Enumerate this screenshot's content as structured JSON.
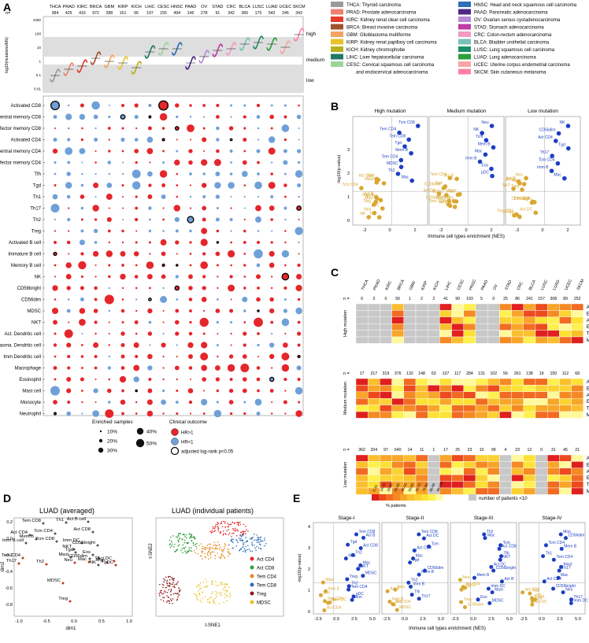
{
  "panel_labels": {
    "a": "A",
    "b": "B",
    "c": "C",
    "d": "D",
    "e": "E"
  },
  "cancers": [
    "THCA",
    "PRAD",
    "KIRC",
    "BRCA",
    "GBM",
    "KIRP",
    "KICH",
    "LIHC",
    "CESC",
    "HNSC",
    "PAAD",
    "OV",
    "STAD",
    "CRC",
    "BLCA",
    "LUSC",
    "LUAD",
    "UCEC",
    "SKCM"
  ],
  "colors": {
    "THCA": "#9a9a9a",
    "PRAD": "#f08070",
    "KIRC": "#e63b2e",
    "BRCA": "#a0522d",
    "GBM": "#f4a460",
    "KIRP": "#e8c32a",
    "KICH": "#b8b01e",
    "LIHC": "#1f7a63",
    "CESC": "#9bd49b",
    "HNSC": "#2d6eb5",
    "PAAD": "#4e2a84",
    "OV": "#b78ad6",
    "STAD": "#bf3aa5",
    "CRC": "#f39ac6",
    "BLCA": "#78c2ba",
    "LUSC": "#1d8f6a",
    "LUAD": "#2e9f3a",
    "UCEC": "#f8a5a5",
    "SKCM": "#ff7fa5",
    "red": "#e5262b",
    "blue": "#6fa0d8",
    "gold": "#d9a732",
    "navy": "#1c3fc2"
  },
  "panel_a": {
    "n_label": "n=",
    "n_values": [
      "384",
      "425",
      "416",
      "972",
      "288",
      "161",
      "66",
      "197",
      "155",
      "494",
      "146",
      "278",
      "91",
      "342",
      "366",
      "175",
      "542",
      "246",
      "343"
    ],
    "y_axis_label": "log10(mutations/Mb)",
    "y_ticks": [
      "1000",
      "100",
      "10",
      "1",
      "0.1",
      "0.01"
    ],
    "band_labels": [
      "high",
      "medium",
      "low"
    ],
    "cell_types": [
      "Activated CD8",
      "Central memory CD8",
      "Effector memory CD8",
      "Activated CD4",
      "Central memory CD4",
      "Effector memory CD4",
      "Tfh",
      "Tgd",
      "Th1",
      "Th17",
      "Th2",
      "Treg",
      "Activated B cell",
      "Immature B cell",
      "Memory B cell",
      "NK",
      "CD56bright",
      "CD56dim",
      "MDSC",
      "NKT",
      "Act. Dendritic cell",
      "plasma. Dendritic cell",
      "Imm Dendritic cell",
      "Macrophage",
      "Eosinophil",
      "Mast cell",
      "Monocyte",
      "Neutrophil"
    ],
    "enriched_title": "Enriched samples",
    "enriched_sizes": [
      "10%",
      "20%",
      "30%",
      "40%",
      "50%"
    ],
    "clinical_title": "Clinical outcome",
    "clinical_items": [
      "HR>1",
      "HR<1",
      "adjusted log-rank p<0.05"
    ]
  },
  "legend": [
    "THCA: Thyroid carcinoma",
    "PRAD: Prostate adenocarcinoma",
    "KIRC: Kidney renal clear cell carcinoma",
    "BRCA: Breast invasive carcinoma",
    "GBM: Glioblastoma multiforme",
    "KIRP: Kidney renal papillary cell carcinoma",
    "KICH: Kidney chromophobe",
    "LIHC: Liver hepatocellular carcinoma",
    "CESC: Cervical squamous cell carcinoma",
    "and endocervical adenocarcinoma",
    "HNSC: Head and neck squamous cell carcinoma",
    "PAAD: Pancreatic adenocarcinoma",
    "OV: Ovarian serous cystadenocarcinoma",
    "STAD: Stomach adenocarcinoma",
    "CRC: Colon-rectum adenocarcinoma",
    "BLCA: Bladder urothelial carcinoma",
    "LUSC: Lung squamous cell carcinoma",
    "LUAD: Lung adenocarcinoma",
    "UCEC: Uterine corpus endometrial carcinoma",
    "SKCM: Skin cutaneous melanoma"
  ],
  "panel_b": {
    "titles": [
      "High mutation",
      "Medium mutation",
      "Low mutation"
    ],
    "y_label": "-log10(p-value)",
    "x_label": "Immune cell types enrichment (NES)",
    "x_ticks": [
      "-2",
      "0",
      "2"
    ],
    "y_ticks": [
      "0",
      "1",
      "2",
      "3"
    ],
    "high_labels": [
      "Tcm CD8",
      "Act CD4",
      "Tem CD4",
      "Act B",
      "Tem CD8",
      "Tcm CD4",
      "Tgd",
      "NK",
      "Mem B",
      "Th1",
      "Tem CD4",
      "NKT",
      "MDSC",
      "Mon",
      "Th2",
      "Imm B",
      "Mac",
      "Neu",
      "Act DC",
      "Tfh",
      "Treg",
      "pDC",
      "Mast"
    ],
    "medium_labels": [
      "Neu",
      "Act B",
      "NK",
      "Th2",
      "Tcm",
      "Tem CD8",
      "Mem B",
      "Tgd",
      "Mac",
      "Act CD8",
      "Imm B",
      "CD56bright",
      "Eos",
      "Th1",
      "pDC",
      "CD56dim",
      "Act DC",
      "Tem CD4",
      "MDSC",
      "Th17",
      "Mast",
      "NKT"
    ],
    "low_labels": [
      "NK",
      "Treg",
      "CD56dim",
      "Th1",
      "Act CD4",
      "Act B",
      "Tgd",
      "Neu",
      "Th17",
      "Act DC",
      "Tcm CD4",
      "pDC",
      "Imm B",
      "Tcm CD8",
      "Mac",
      "CD56bright",
      "Th2",
      "Mast",
      "NKT",
      "MDSC",
      "Tem CD4"
    ]
  },
  "panel_c": {
    "cancers": [
      "THCA",
      "PRAD",
      "KIRC",
      "BRCA",
      "GBM",
      "KIRP",
      "KICH",
      "LIHC",
      "CESC",
      "HNSC",
      "PAAD",
      "OV",
      "STAD",
      "CRC",
      "BLCA",
      "LUSC",
      "LUAD",
      "UCEC",
      "SKCM"
    ],
    "n_label": "n =",
    "blocks": [
      {
        "label": "High mutation",
        "n": [
          "0",
          "3",
          "0",
          "56",
          "1",
          "2",
          "2",
          "41",
          "90",
          "193",
          "5",
          "0",
          "25",
          "86",
          "241",
          "157",
          "308",
          "89",
          "252"
        ]
      },
      {
        "label": "Medium mutation",
        "n": [
          "17",
          "217",
          "319",
          "376",
          "132",
          "148",
          "63",
          "137",
          "117",
          "284",
          "131",
          "102",
          "56",
          "261",
          "138",
          "19",
          "150",
          "112",
          "68"
        ]
      },
      {
        "label": "Low mutation",
        "n": [
          "362",
          "204",
          "97",
          "640",
          "14",
          "11",
          "1",
          "17",
          "25",
          "23",
          "10",
          "99",
          "4",
          "23",
          "12",
          "0",
          "31",
          "45",
          "21"
        ]
      }
    ],
    "row_labels": [
      "Activated CD8",
      "Effector memory CD8",
      "Activated CD4",
      "Effector memory CD4",
      "Treg",
      "MDSC"
    ],
    "scale_title": "% patients",
    "scale_ticks": [
      "0-10",
      "10-20",
      "20-30",
      "30-40",
      "40-50",
      "50-60",
      "60-70",
      "70-80",
      "80-90",
      "90-100"
    ],
    "grey_note": "number of patients <10"
  },
  "panel_d": {
    "left_title": "LUAD (averaged)",
    "right_title": "LUAD (individual patients)",
    "x_label": "dim1",
    "y_label": "dim2",
    "x_ticks": [
      "-1.0",
      "-0.5",
      "0.0",
      "0.5",
      "1.0"
    ],
    "y_ticks": [
      "0.2",
      "0.0",
      "-0.2",
      "-0.4",
      "-0.6",
      "-0.8"
    ],
    "points": [
      "Tem CD8",
      "Th1",
      "Act B cell",
      "Act CD4",
      "Tcm CD4",
      "Act CD8",
      "Mem B",
      "Imm B cell",
      "Tcm CD8",
      "Imm DC",
      "CD56bright",
      "NKT",
      "Tgd",
      "Eos",
      "Mast",
      "CD56dim",
      "Th",
      "Act DC",
      "Tem CD4",
      "Mac",
      "Mon",
      "Th17",
      "Th2",
      "Neu",
      "NK",
      "pDC",
      "MDSC",
      "Treg"
    ],
    "tsne_x": "t-SNE1",
    "tsne_y": "t-SNE2",
    "tsne_legend": [
      "Act CD4",
      "Act CD8",
      "Tem CD4",
      "Tem CD8",
      "Treg",
      "MDSC"
    ],
    "tsne_colors": [
      "#e5262b",
      "#2e9f3a",
      "#e38a1f",
      "#2d6eb5",
      "#8b1a1a",
      "#e8c32a"
    ]
  },
  "panel_e": {
    "titles": [
      "Stage-I",
      "Stage-II",
      "Stage-III",
      "Stage-IV"
    ],
    "y_label": "-log10(p-value)",
    "x_label": "Immune cell types enrichment (NES)",
    "x_ticks": [
      "-2.5",
      "0.0",
      "2.5",
      "5.0"
    ],
    "y_ticks": [
      "0",
      "1",
      "2",
      "3",
      "4"
    ],
    "stage1": [
      "Tem CD8",
      "Act B",
      "Tcm CD4",
      "Tgd",
      "Act CD8",
      "Imm B",
      "Th1",
      "Neu",
      "Tfh",
      "Mac",
      "NKT",
      "Mast",
      "MDSC",
      "Treg",
      "Eos",
      "Th2",
      "Tem CD4",
      "Act CD4",
      "pDC",
      "Mon",
      "Imm DC"
    ],
    "stage2": [
      "Tem CD8",
      "Act DC",
      "Act B",
      "Tcm",
      "Act CD8",
      "Neu",
      "Mac",
      "Tgd",
      "Imm B",
      "CD56dim",
      "Mem B",
      "Eos",
      "Th2",
      "Imm B",
      "MDSC",
      "Tfh",
      "Th17",
      "Act CD4"
    ],
    "stage3": [
      "Th2",
      "Mac",
      "Act CD4",
      "Tcm",
      "Act CD8",
      "Neu",
      "Tfh",
      "NKT",
      "Th17",
      "Act DC",
      "CD56bright",
      "CD56dim",
      "Mem B",
      "Act B",
      "pDC",
      "Imm DC",
      "Mast",
      "Treg",
      "Eos",
      "MDSC"
    ],
    "stage4": [
      "Mon",
      "CD56dim",
      "Tgd",
      "Tcm CD4",
      "Mem B",
      "Act CD8",
      "Th1",
      "Tem CD4",
      "pDC",
      "Mast",
      "Th17",
      "Th2",
      "Mac",
      "Act CD4",
      "Tcm",
      "CD56bright",
      "Neu",
      "Act DC",
      "Th17",
      "Imm DC"
    ]
  }
}
